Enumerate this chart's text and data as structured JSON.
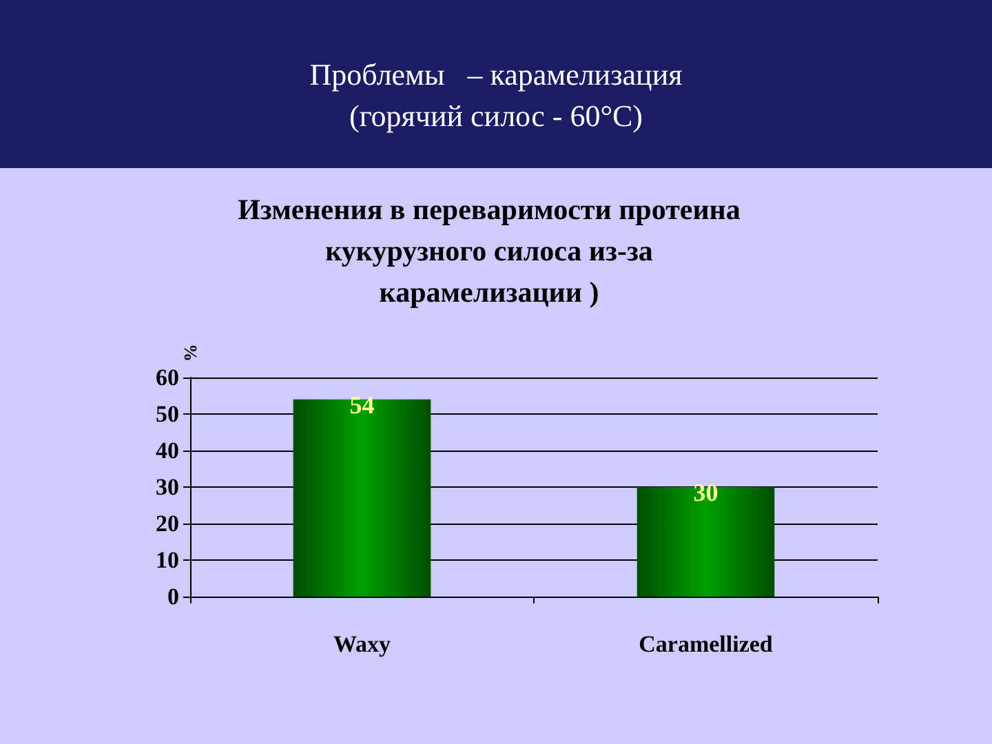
{
  "chart_data": {
    "type": "bar",
    "title": "Проблемы   – карамелизация\n(горячий силос - 60°С)",
    "subtitle": "Изменения в переваримости протеина\nкукурузного силоса из-за\nкарамелизации )",
    "ylabel": "%",
    "categories": [
      "Waxy",
      "Caramellized"
    ],
    "values": [
      54,
      30
    ],
    "color": "#008000",
    "ylim": [
      0,
      60
    ],
    "yticks": [
      0,
      10,
      20,
      30,
      40,
      50,
      60
    ],
    "grid": "y",
    "data_labels": true
  }
}
